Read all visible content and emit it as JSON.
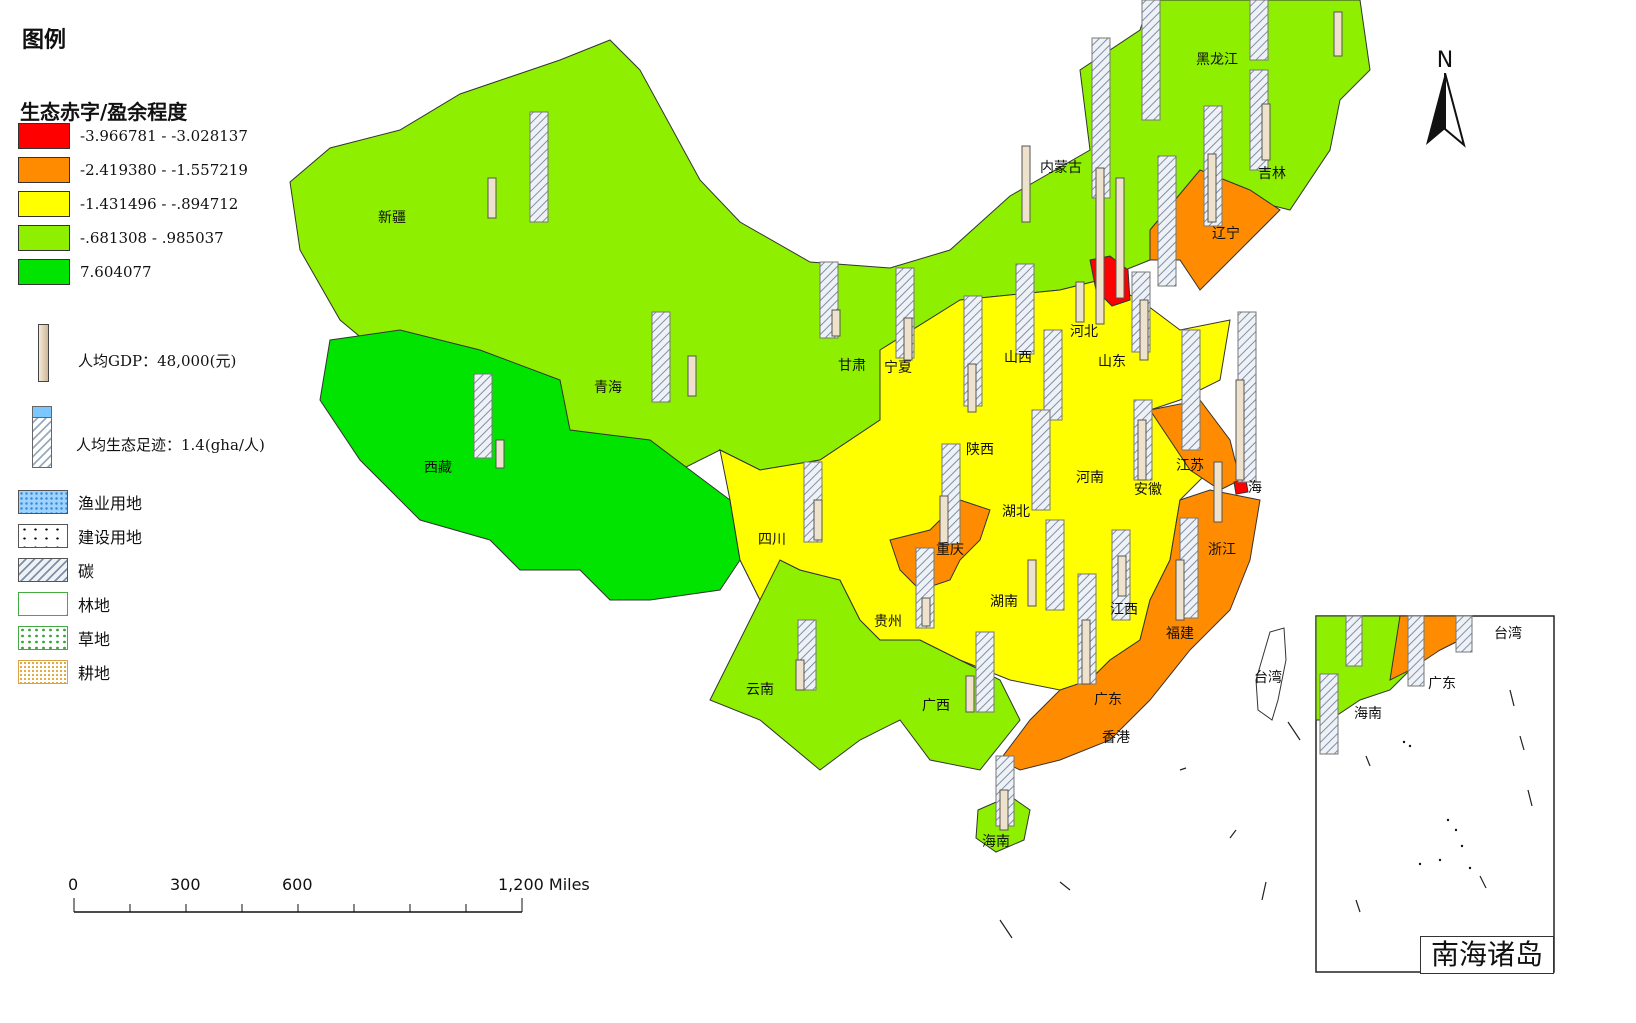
{
  "legend": {
    "title": "图例",
    "classification_title": "生态赤字/盈余程度",
    "classes": [
      {
        "label": "-3.966781 - -3.028137",
        "color": "#ff0000"
      },
      {
        "label": "-2.419380 - -1.557219",
        "color": "#ff8c00"
      },
      {
        "label": "-1.431496 - -.894712",
        "color": "#ffff00"
      },
      {
        "label": "-.681308 - .985037",
        "color": "#8fef00"
      },
      {
        "label": "7.604077",
        "color": "#00e400"
      }
    ],
    "gdp_symbol_label": "人均GDP：48,000(元)",
    "footprint_symbol_label": "人均生态足迹：1.4(gha/人)",
    "footprint_components": [
      {
        "label": "渔业用地",
        "pattern": "fishery"
      },
      {
        "label": "建设用地",
        "pattern": "builtup"
      },
      {
        "label": "碳",
        "pattern": "carbon"
      },
      {
        "label": "林地",
        "pattern": "forest"
      },
      {
        "label": "草地",
        "pattern": "grass"
      },
      {
        "label": "耕地",
        "pattern": "cropland"
      }
    ]
  },
  "provinces": [
    {
      "name": "新疆",
      "class": 3
    },
    {
      "name": "西藏",
      "class": 4
    },
    {
      "name": "青海",
      "class": 3
    },
    {
      "name": "甘肃",
      "class": 3
    },
    {
      "name": "内蒙古",
      "class": 3
    },
    {
      "name": "黑龙江",
      "class": 3
    },
    {
      "name": "吉林",
      "class": 3
    },
    {
      "name": "辽宁",
      "class": 1
    },
    {
      "name": "河北",
      "class": 2
    },
    {
      "name": "山东",
      "class": 2
    },
    {
      "name": "山西",
      "class": 2
    },
    {
      "name": "宁夏",
      "class": 2
    },
    {
      "name": "陕西",
      "class": 2
    },
    {
      "name": "河南",
      "class": 2
    },
    {
      "name": "江苏",
      "class": 1
    },
    {
      "name": "安徽",
      "class": 2
    },
    {
      "name": "湖北",
      "class": 2
    },
    {
      "name": "四川",
      "class": 2
    },
    {
      "name": "重庆",
      "class": 1
    },
    {
      "name": "贵州",
      "class": 2
    },
    {
      "name": "湖南",
      "class": 2
    },
    {
      "name": "江西",
      "class": 2
    },
    {
      "name": "浙江",
      "class": 1
    },
    {
      "name": "福建",
      "class": 1
    },
    {
      "name": "云南",
      "class": 3
    },
    {
      "name": "广西",
      "class": 3
    },
    {
      "name": "广东",
      "class": 1
    },
    {
      "name": "海南",
      "class": 3
    },
    {
      "name": "台湾",
      "class": -1
    },
    {
      "name": "香港",
      "class": -1
    }
  ],
  "extra_labels": {
    "shanghai_fragment": "海"
  },
  "scale_bar": {
    "labels": [
      "0",
      "300",
      "600",
      "1,200 Miles"
    ]
  },
  "north_arrow": {
    "label": "N"
  },
  "inset": {
    "title": "南海诸岛",
    "labels": [
      "台湾",
      "广东",
      "海南"
    ]
  }
}
